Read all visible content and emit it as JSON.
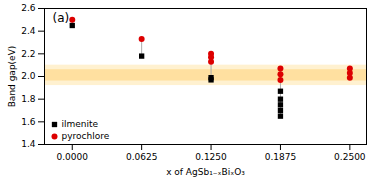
{
  "chart_data": {
    "type": "scatter",
    "title": "(a)",
    "xlabel": "x of AgSb₁₋ₓBiₓO₃",
    "ylabel": "Band gap(eV)",
    "xlim": [
      -0.025,
      0.265
    ],
    "xticks": [
      {
        "value": 0.0,
        "label": "0.0000"
      },
      {
        "value": 0.0625,
        "label": "0.0625"
      },
      {
        "value": 0.125,
        "label": "0.1250"
      },
      {
        "value": 0.1875,
        "label": "0.1875"
      },
      {
        "value": 0.25,
        "label": "0.2500"
      }
    ],
    "ylim": [
      1.4,
      2.6
    ],
    "yticks": [
      1.4,
      1.6,
      1.8,
      {
        "value": 2.0,
        "label": "2.0"
      },
      2.2,
      2.4,
      2.6
    ],
    "grid": false,
    "legend": "lower left",
    "series": [
      {
        "name": "ilmenite",
        "color": "#000000",
        "marker": "square",
        "x": [
          0.0,
          0.0625,
          0.125,
          0.125,
          0.1875,
          0.1875,
          0.1875,
          0.1875,
          0.1875
        ],
        "values": [
          2.45,
          2.18,
          1.97,
          1.99,
          1.65,
          1.7,
          1.75,
          1.8,
          1.87
        ]
      },
      {
        "name": "pyrochlore",
        "color": "#DD0000",
        "marker": "circle",
        "x": [
          0.0,
          0.0625,
          0.125,
          0.125,
          0.125,
          0.1875,
          0.1875,
          0.1875,
          0.25,
          0.25,
          0.25
        ],
        "values": [
          2.5,
          2.33,
          2.13,
          2.17,
          2.2,
          1.97,
          2.02,
          2.07,
          1.99,
          2.03,
          2.07
        ]
      }
    ],
    "bands": [
      {
        "from": 1.92,
        "to": 2.1,
        "color": "#FFE8B0"
      },
      {
        "from": 1.96,
        "to": 2.06,
        "color": "#FFD580"
      }
    ],
    "range_lines": [
      {
        "x": 0.0,
        "low": 2.45,
        "high": 2.5
      },
      {
        "x": 0.0625,
        "low": 2.18,
        "high": 2.33
      },
      {
        "x": 0.125,
        "low": 1.97,
        "high": 2.2
      },
      {
        "x": 0.1875,
        "low": 1.65,
        "high": 2.07
      },
      {
        "x": 0.25,
        "low": 1.99,
        "high": 2.07
      }
    ]
  }
}
